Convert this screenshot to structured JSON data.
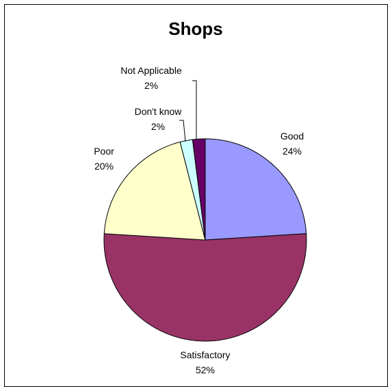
{
  "chart_data": {
    "type": "pie",
    "title": "Shops",
    "categories": [
      "Good",
      "Satisfactory",
      "Poor",
      "Don't know",
      "Not Applicable"
    ],
    "values": [
      24,
      52,
      20,
      2,
      2
    ],
    "value_labels": [
      "24%",
      "52%",
      "20%",
      "2%",
      "2%"
    ],
    "colors": [
      "#9999ff",
      "#993366",
      "#ffffcc",
      "#ccffff",
      "#660066"
    ],
    "legend": "none"
  }
}
